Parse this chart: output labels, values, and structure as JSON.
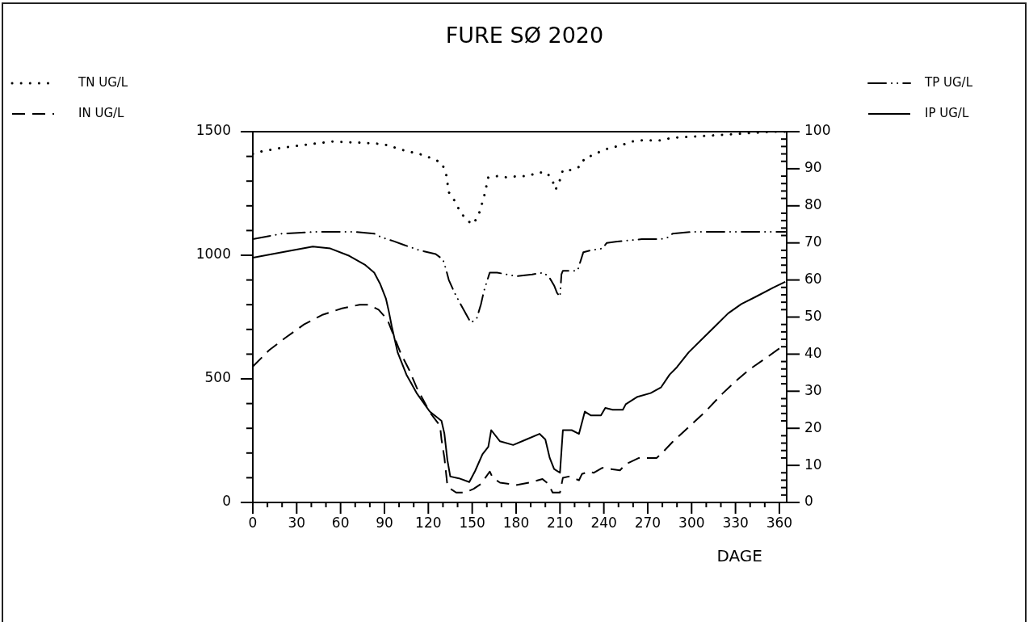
{
  "chart_data": {
    "type": "line",
    "title": "FURE SØ 2020",
    "xlabel": "DAGE",
    "xlim": [
      0,
      365
    ],
    "ylim": [
      0,
      1500
    ],
    "y2lim": [
      0,
      100
    ],
    "xticks": [
      0,
      {
        "value": 10,
        "label": null
      },
      {
        "value": 20,
        "label": null
      },
      30,
      {
        "value": 40,
        "label": null
      },
      {
        "value": 50,
        "label": null
      },
      60,
      {
        "value": 70,
        "label": null
      },
      {
        "value": 80,
        "label": null
      },
      90,
      {
        "value": 100,
        "label": null
      },
      {
        "value": 110,
        "label": null
      },
      120,
      {
        "value": 130,
        "label": null
      },
      {
        "value": 140,
        "label": null
      },
      150,
      {
        "value": 160,
        "label": null
      },
      {
        "value": 170,
        "label": null
      },
      180,
      {
        "value": 190,
        "label": null
      },
      {
        "value": 200,
        "label": null
      },
      210,
      {
        "value": 220,
        "label": null
      },
      {
        "value": 230,
        "label": null
      },
      240,
      {
        "value": 250,
        "label": null
      },
      {
        "value": 260,
        "label": null
      },
      270,
      {
        "value": 280,
        "label": null
      },
      {
        "value": 290,
        "label": null
      },
      300,
      {
        "value": 310,
        "label": null
      },
      {
        "value": 320,
        "label": null
      },
      330,
      {
        "value": 340,
        "label": null
      },
      {
        "value": 350,
        "label": null
      },
      360
    ],
    "yticks": [
      0,
      {
        "value": 100,
        "label": null
      },
      {
        "value": 200,
        "label": null
      },
      {
        "value": 300,
        "label": null
      },
      {
        "value": 400,
        "label": null
      },
      500,
      {
        "value": 600,
        "label": null
      },
      {
        "value": 700,
        "label": null
      },
      {
        "value": 800,
        "label": null
      },
      {
        "value": 900,
        "label": null
      },
      1000,
      {
        "value": 1100,
        "label": null
      },
      {
        "value": 1200,
        "label": null
      },
      {
        "value": 1300,
        "label": null
      },
      {
        "value": 1400,
        "label": null
      },
      1500
    ],
    "y2ticks": [
      0,
      {
        "value": 2,
        "label": null
      },
      {
        "value": 4,
        "label": null
      },
      {
        "value": 6,
        "label": null
      },
      {
        "value": 8,
        "label": null
      },
      10,
      {
        "value": 12,
        "label": null
      },
      {
        "value": 14,
        "label": null
      },
      {
        "value": 16,
        "label": null
      },
      {
        "value": 18,
        "label": null
      },
      20,
      {
        "value": 22,
        "label": null
      },
      {
        "value": 24,
        "label": null
      },
      {
        "value": 26,
        "label": null
      },
      {
        "value": 28,
        "label": null
      },
      30,
      {
        "value": 32,
        "label": null
      },
      {
        "value": 34,
        "label": null
      },
      {
        "value": 36,
        "label": null
      },
      {
        "value": 38,
        "label": null
      },
      40,
      {
        "value": 42,
        "label": null
      },
      {
        "value": 44,
        "label": null
      },
      {
        "value": 46,
        "label": null
      },
      {
        "value": 48,
        "label": null
      },
      50,
      {
        "value": 52,
        "label": null
      },
      {
        "value": 54,
        "label": null
      },
      {
        "value": 56,
        "label": null
      },
      {
        "value": 58,
        "label": null
      },
      60,
      {
        "value": 62,
        "label": null
      },
      {
        "value": 64,
        "label": null
      },
      {
        "value": 66,
        "label": null
      },
      {
        "value": 68,
        "label": null
      },
      70,
      {
        "value": 72,
        "label": null
      },
      {
        "value": 74,
        "label": null
      },
      {
        "value": 76,
        "label": null
      },
      {
        "value": 78,
        "label": null
      },
      80,
      {
        "value": 82,
        "label": null
      },
      {
        "value": 84,
        "label": null
      },
      {
        "value": 86,
        "label": null
      },
      {
        "value": 88,
        "label": null
      },
      90,
      {
        "value": 92,
        "label": null
      },
      {
        "value": 94,
        "label": null
      },
      {
        "value": 96,
        "label": null
      },
      {
        "value": 98,
        "label": null
      },
      100
    ],
    "legend": "top",
    "marker": "none",
    "series": [
      {
        "name": "TN UG/L",
        "color": "#000000",
        "line_style": "dotted",
        "x": [
          0,
          6,
          20,
          40,
          54,
          75,
          89,
          103,
          117,
          129,
          132,
          134,
          138,
          141,
          145,
          150,
          154,
          156,
          158,
          161,
          167,
          174,
          181,
          188,
          195,
          201,
          205,
          207,
          210,
          212,
          218,
          224,
          227,
          233,
          239,
          245,
          252,
          259,
          266,
          280,
          286,
          301,
          315,
          329,
          342,
          356,
          364
        ],
        "values": [
          1410,
          1420,
          1435,
          1450,
          1460,
          1455,
          1450,
          1425,
          1405,
          1375,
          1335,
          1255,
          1220,
          1185,
          1150,
          1125,
          1155,
          1195,
          1235,
          1315,
          1320,
          1315,
          1320,
          1320,
          1335,
          1335,
          1300,
          1265,
          1305,
          1345,
          1345,
          1360,
          1395,
          1405,
          1425,
          1435,
          1445,
          1460,
          1465,
          1465,
          1475,
          1480,
          1485,
          1490,
          1495,
          1500,
          1500
        ]
      },
      {
        "name": "IN UG/L",
        "color": "#000000",
        "line_style": "dashed",
        "x": [
          0,
          11,
          22,
          35,
          48,
          61,
          73,
          79,
          86,
          92,
          95,
          101,
          107,
          112,
          121,
          128,
          129,
          131,
          133,
          134,
          139,
          145,
          151,
          156,
          162,
          164,
          169,
          175,
          180,
          189,
          198,
          202,
          205,
          210,
          212,
          216,
          223,
          225,
          230,
          233,
          239,
          245,
          251,
          255,
          264,
          276,
          279,
          287,
          298,
          309,
          321,
          331,
          340,
          351,
          364
        ],
        "values": [
          550,
          615,
          665,
          720,
          760,
          785,
          800,
          800,
          780,
          740,
          695,
          605,
          535,
          465,
          365,
          310,
          255,
          180,
          70,
          60,
          40,
          40,
          55,
          75,
          125,
          100,
          80,
          75,
          70,
          80,
          95,
          75,
          40,
          40,
          100,
          105,
          90,
          115,
          125,
          120,
          140,
          135,
          130,
          155,
          180,
          180,
          195,
          245,
          305,
          365,
          440,
          495,
          540,
          585,
          640
        ]
      },
      {
        "name": "TP UG/L",
        "color": "#000000",
        "line_style": "dashdot",
        "axis": "y2",
        "x": [
          0,
          20,
          44,
          57,
          70,
          83,
          88,
          96,
          103,
          114,
          125,
          130,
          132,
          134,
          138,
          142,
          149,
          153,
          156,
          158,
          162,
          167,
          180,
          191,
          199,
          203,
          206,
          208,
          210,
          211,
          212,
          222,
          226,
          231,
          239,
          242,
          252,
          266,
          279,
          284,
          287,
          301,
          325,
          364
        ],
        "values": [
          71,
          72.5,
          73,
          73,
          73,
          72.5,
          71.5,
          70.5,
          69.5,
          68,
          67,
          65.5,
          63,
          60,
          56.5,
          53.5,
          48.5,
          49.5,
          53.5,
          57,
          62,
          62,
          61,
          61.5,
          62,
          60.5,
          58.5,
          56.5,
          55.5,
          61.5,
          62.5,
          62.5,
          67.5,
          68,
          68.5,
          70,
          70.5,
          71,
          71,
          71.5,
          72.5,
          73,
          73,
          73
        ]
      },
      {
        "name": "IP UG/L",
        "color": "#000000",
        "line_style": "solid",
        "axis": "y2",
        "x": [
          0,
          20,
          41,
          53,
          66,
          77,
          83,
          87,
          91,
          93,
          95,
          99,
          105,
          112,
          121,
          129,
          131,
          133,
          135,
          141,
          148,
          152,
          157,
          161,
          163,
          169,
          178,
          187,
          196,
          200,
          203,
          206,
          210,
          212,
          218,
          223,
          227,
          231,
          238,
          241,
          246,
          253,
          255,
          263,
          272,
          279,
          285,
          290,
          298,
          307,
          316,
          325,
          334,
          344,
          356,
          364
        ],
        "values": [
          66,
          67.5,
          69,
          68.5,
          66.5,
          64,
          62,
          59,
          55,
          51.5,
          47.5,
          40.5,
          34.5,
          29.5,
          24.5,
          22,
          18.5,
          11.5,
          7,
          6.5,
          5.5,
          8.5,
          13,
          15,
          19.5,
          16.5,
          15.5,
          17,
          18.5,
          17,
          12,
          9,
          8,
          19.5,
          19.5,
          18.5,
          24.5,
          23.5,
          23.5,
          25.5,
          25,
          25,
          26.5,
          28.5,
          29.5,
          31,
          34.5,
          36.5,
          40.5,
          44,
          47.5,
          51,
          53.5,
          55.5,
          58,
          59.5
        ]
      }
    ]
  }
}
